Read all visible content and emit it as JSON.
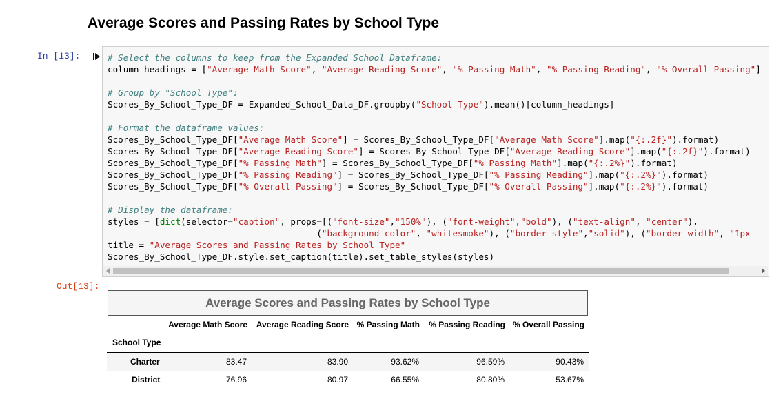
{
  "heading": "Average Scores and Passing Rates by School Type",
  "input_prompt": "In [13]:",
  "output_prompt": "Out[13]:",
  "code_lines": [
    "# Select the columns to keep from the Expanded School Dataframe:",
    "column_headings = [\"Average Math Score\", \"Average Reading Score\", \"% Passing Math\", \"% Passing Reading\", \"% Overall Passing\"]",
    "",
    "# Group by \"School Type\":",
    "Scores_By_School_Type_DF = Expanded_School_Data_DF.groupby(\"School Type\").mean()[column_headings]",
    "",
    "# Format the dataframe values:",
    "Scores_By_School_Type_DF[\"Average Math Score\"] = Scores_By_School_Type_DF[\"Average Math Score\"].map(\"{:.2f}\").format)",
    "Scores_By_School_Type_DF[\"Average Reading Score\"] = Scores_By_School_Type_DF[\"Average Reading Score\"].map(\"{:.2f}\").format)",
    "Scores_By_School_Type_DF[\"% Passing Math\"] = Scores_By_School_Type_DF[\"% Passing Math\"].map(\"{:.2%}\").format)",
    "Scores_By_School_Type_DF[\"% Passing Reading\"] = Scores_By_School_Type_DF[\"% Passing Reading\"].map(\"{:.2%}\").format)",
    "Scores_By_School_Type_DF[\"% Overall Passing\"] = Scores_By_School_Type_DF[\"% Overall Passing\"].map(\"{:.2%}\").format)",
    "",
    "# Display the dataframe:",
    "styles = [dict(selector=\"caption\", props=[(\"font-size\",\"150%\"), (\"font-weight\",\"bold\"), (\"text-align\", \"center\"),",
    "                                        (\"background-color\", \"whitesmoke\"), (\"border-style\",\"solid\"), (\"border-width\", \"1px",
    "title = \"Average Scores and Passing Rates by School Type\"",
    "Scores_By_School_Type_DF.style.set_caption(title).set_table_styles(styles)"
  ],
  "table": {
    "caption": "Average Scores and Passing Rates by School Type",
    "columns": [
      "Average Math Score",
      "Average Reading Score",
      "% Passing Math",
      "% Passing Reading",
      "% Overall Passing"
    ],
    "index_name": "School Type",
    "rows": [
      {
        "index": "Charter",
        "values": [
          "83.47",
          "83.90",
          "93.62%",
          "96.59%",
          "90.43%"
        ]
      },
      {
        "index": "District",
        "values": [
          "76.96",
          "80.97",
          "66.55%",
          "80.80%",
          "53.67%"
        ]
      }
    ]
  },
  "colors": {
    "prompt_in": "#303f9f",
    "prompt_out": "#d84315",
    "comment": "#408080",
    "string": "#ba2121",
    "builtin": "#008000"
  },
  "icons": {
    "run": "step-marker-icon"
  }
}
